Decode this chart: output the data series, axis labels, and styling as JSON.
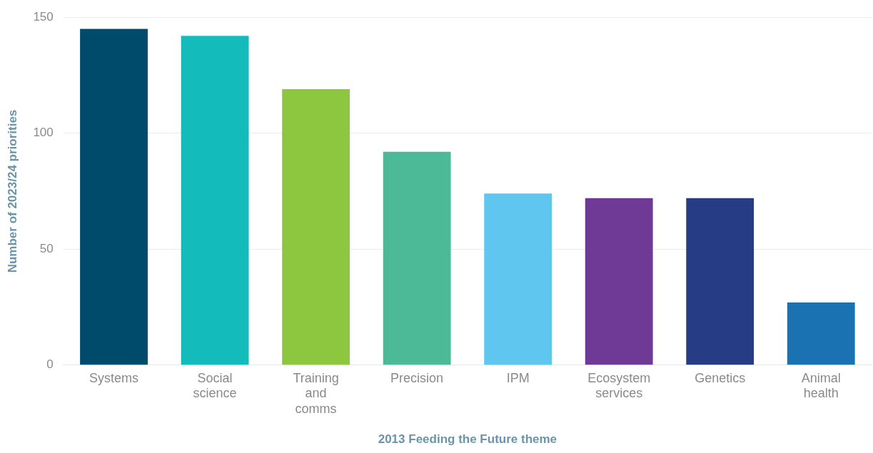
{
  "chart_data": {
    "type": "bar",
    "xlabel": "2013 Feeding the Future theme",
    "ylabel": "Number of 2023/24 priorities",
    "categories": [
      "Systems",
      "Social science",
      "Training and comms",
      "Precision",
      "IPM",
      "Ecosystem services",
      "Genetics",
      "Animal health"
    ],
    "values": [
      145,
      142,
      119,
      92,
      74,
      72,
      72,
      27
    ],
    "colors": [
      "#004a6b",
      "#14bbbb",
      "#8dc63f",
      "#4cba96",
      "#5fc6f0",
      "#6f3a95",
      "#263d85",
      "#1b72b3"
    ],
    "ylim": [
      0,
      150
    ],
    "yticks": [
      0,
      50,
      100,
      150
    ],
    "grid": "y",
    "legend": false
  }
}
